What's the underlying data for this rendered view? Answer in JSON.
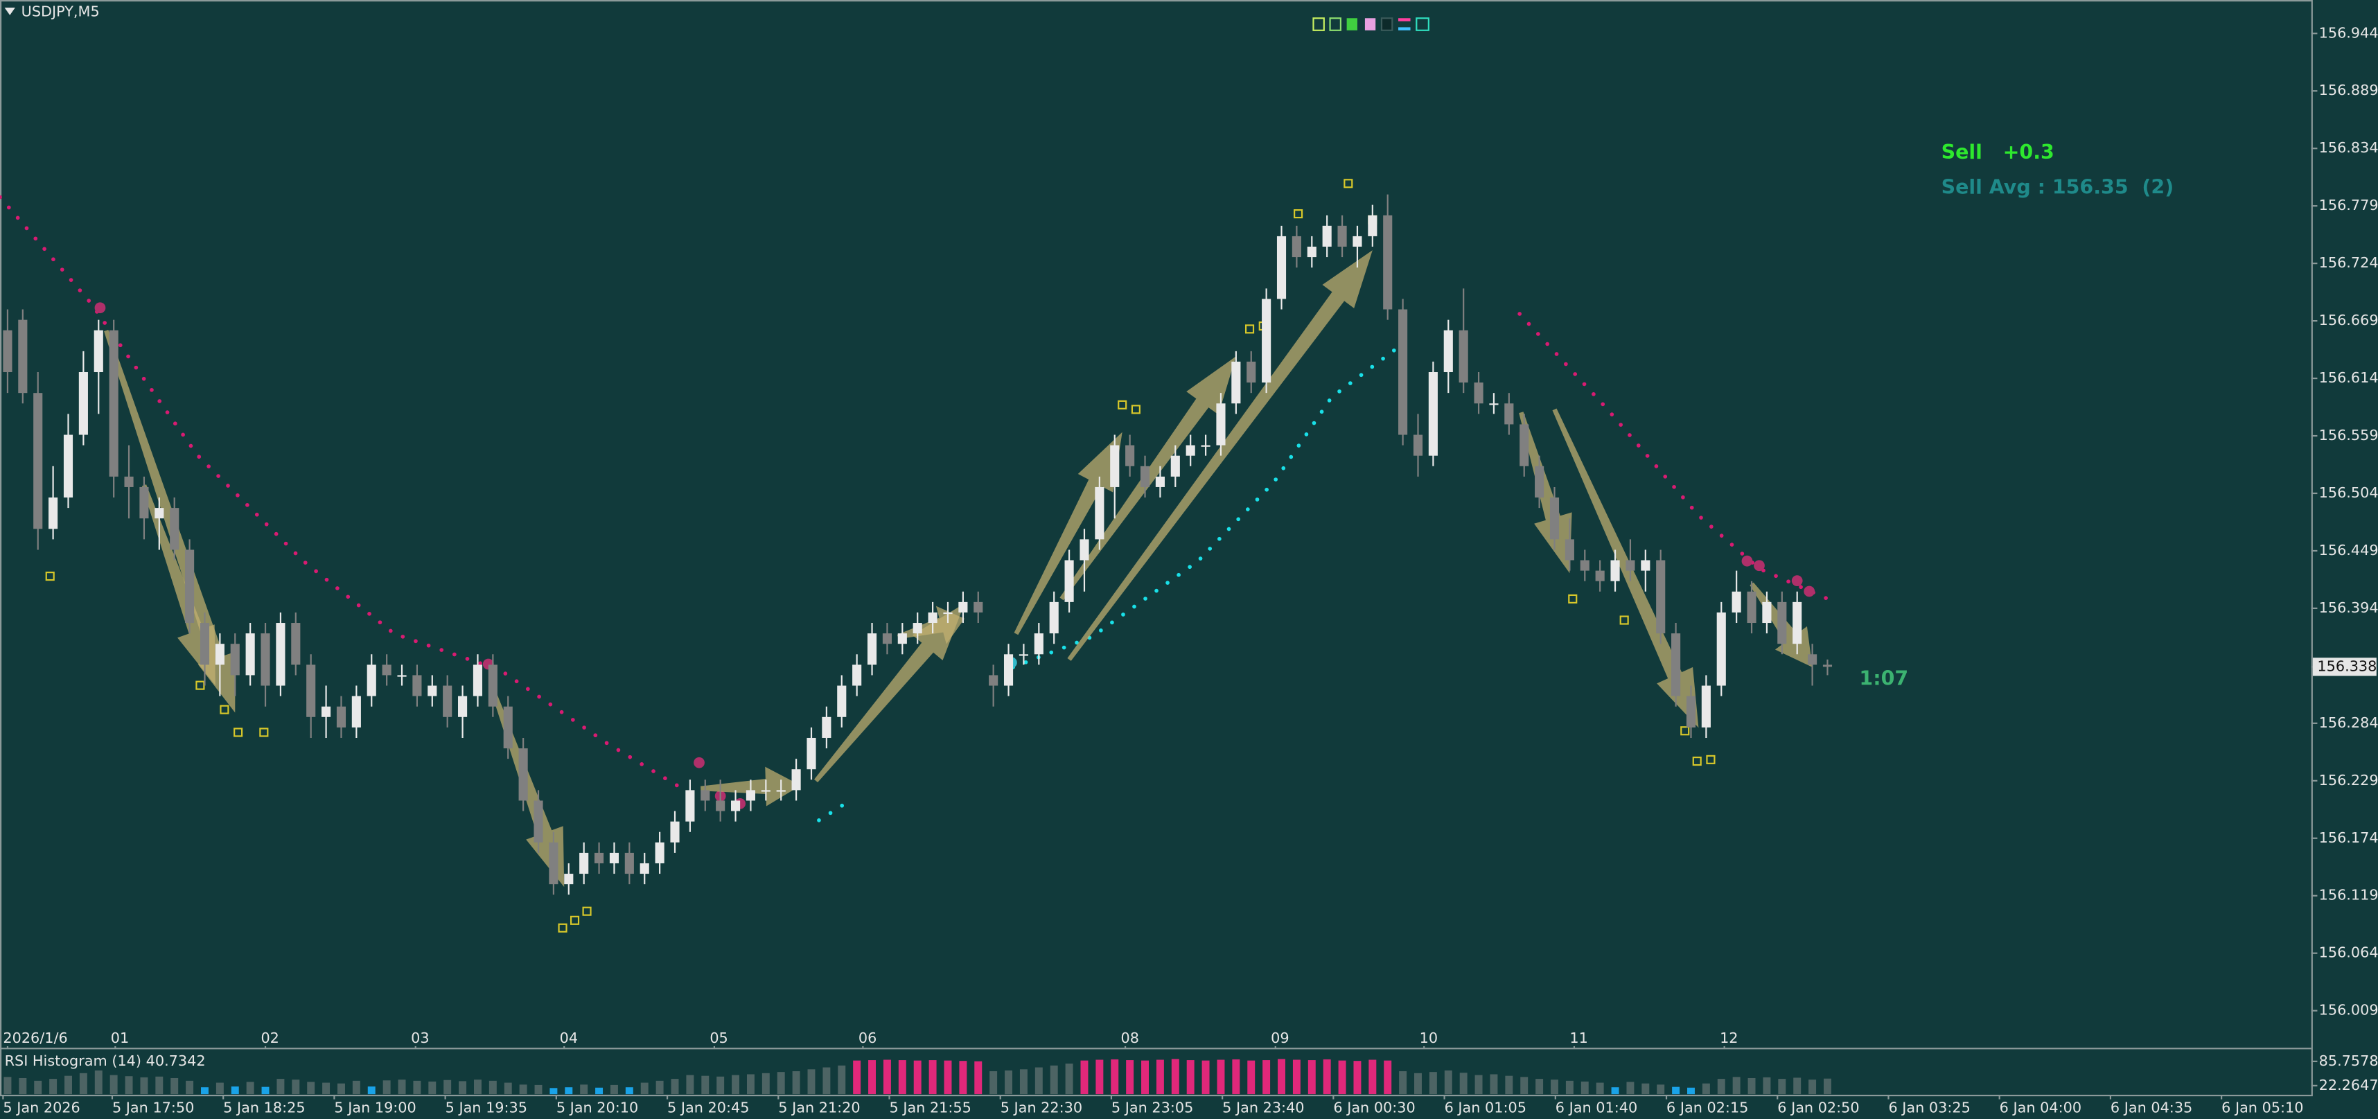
{
  "chart_data": {
    "type": "candlestick",
    "symbol": "USDJPY,M5",
    "trade_label": "Sell   +0.3",
    "avg_label": "Sell Avg : 156.35  (2)",
    "timer": "1:07",
    "ylim": [
      155.975,
      156.976
    ],
    "yticks": [
      156.944,
      156.889,
      156.834,
      156.779,
      156.724,
      156.669,
      156.614,
      156.559,
      156.504,
      156.449,
      156.394,
      156.284,
      156.229,
      156.174,
      156.119,
      156.064,
      156.009
    ],
    "hour_labels": [
      "2026/1/6",
      "01",
      "02",
      "03",
      "04",
      "05",
      "06",
      "08",
      "09",
      "10",
      "11",
      "12"
    ],
    "x_labels": [
      "5 Jan 2026",
      "5 Jan 17:50",
      "5 Jan 18:25",
      "5 Jan 19:00",
      "5 Jan 19:35",
      "5 Jan 20:10",
      "5 Jan 20:45",
      "5 Jan 21:20",
      "5 Jan 21:55",
      "5 Jan 22:30",
      "5 Jan 23:05",
      "5 Jan 23:40",
      "6 Jan 00:30",
      "6 Jan 01:05",
      "6 Jan 01:40",
      "6 Jan 02:15",
      "6 Jan 02:50",
      "6 Jan 03:25",
      "6 Jan 04:00",
      "6 Jan 04:35",
      "6 Jan 05:10"
    ],
    "up_color": "#e9e9e9",
    "down_color": "#808080",
    "open": [
      156.66,
      156.67,
      156.6,
      156.47,
      156.5,
      156.56,
      156.62,
      156.66,
      156.52,
      156.51,
      156.48,
      156.49,
      156.45,
      156.38,
      156.34,
      156.36,
      156.33,
      156.37,
      156.32,
      156.38,
      156.34,
      156.29,
      156.3,
      156.28,
      156.31,
      156.34,
      156.33,
      156.33,
      156.31,
      156.32,
      156.29,
      156.31,
      156.34,
      156.3,
      156.26,
      156.21,
      156.17,
      156.13,
      156.14,
      156.16,
      156.15,
      156.16,
      156.14,
      156.15,
      156.17,
      156.19,
      156.22,
      156.21,
      156.2,
      156.21,
      156.22,
      156.22,
      156.22,
      156.24,
      156.27,
      156.29,
      156.32,
      156.34,
      156.37,
      156.36,
      156.37,
      156.38,
      156.39,
      156.39,
      156.4,
      156.33,
      156.32,
      156.35,
      156.35,
      156.37,
      156.4,
      156.44,
      156.46,
      156.51,
      156.55,
      156.53,
      156.51,
      156.52,
      156.54,
      156.55,
      156.55,
      156.59,
      156.63,
      156.61,
      156.69,
      156.75,
      156.73,
      156.74,
      156.76,
      156.74,
      156.75,
      156.77,
      156.68,
      156.56,
      156.54,
      156.62,
      156.66,
      156.61,
      156.59,
      156.59,
      156.57,
      156.53,
      156.5,
      156.46,
      156.44,
      156.43,
      156.42,
      156.44,
      156.43,
      156.44,
      156.37,
      156.31,
      156.28,
      156.32,
      156.39,
      156.41,
      156.38,
      156.4,
      156.36,
      156.35,
      156.34
    ],
    "high": [
      156.68,
      156.68,
      156.62,
      156.53,
      156.58,
      156.64,
      156.67,
      156.67,
      156.55,
      156.52,
      156.5,
      156.5,
      156.46,
      156.39,
      156.37,
      156.37,
      156.38,
      156.38,
      156.39,
      156.39,
      156.35,
      156.32,
      156.31,
      156.32,
      156.35,
      156.35,
      156.34,
      156.34,
      156.33,
      156.33,
      156.32,
      156.35,
      156.35,
      156.31,
      156.27,
      156.22,
      156.18,
      156.15,
      156.17,
      156.17,
      156.17,
      156.17,
      156.16,
      156.18,
      156.2,
      156.23,
      156.23,
      156.23,
      156.22,
      156.23,
      156.23,
      156.23,
      156.25,
      156.28,
      156.3,
      156.33,
      156.35,
      156.38,
      156.38,
      156.38,
      156.39,
      156.4,
      156.4,
      156.41,
      156.41,
      156.34,
      156.36,
      156.36,
      156.38,
      156.41,
      156.45,
      156.47,
      156.52,
      156.56,
      156.56,
      156.54,
      156.53,
      156.55,
      156.56,
      156.56,
      156.6,
      156.64,
      156.64,
      156.7,
      156.76,
      156.76,
      156.75,
      156.77,
      156.77,
      156.76,
      156.78,
      156.79,
      156.69,
      156.58,
      156.63,
      156.67,
      156.7,
      156.62,
      156.6,
      156.6,
      156.58,
      156.54,
      156.51,
      156.48,
      156.45,
      156.44,
      156.45,
      156.46,
      156.45,
      156.45,
      156.38,
      156.32,
      156.33,
      156.4,
      156.43,
      156.42,
      156.41,
      156.41,
      156.41,
      156.36,
      156.345
    ],
    "low": [
      156.6,
      156.59,
      156.45,
      156.46,
      156.49,
      156.55,
      156.58,
      156.5,
      156.48,
      156.46,
      156.45,
      156.44,
      156.37,
      156.32,
      156.31,
      156.31,
      156.32,
      156.3,
      156.31,
      156.33,
      156.27,
      156.27,
      156.27,
      156.27,
      156.3,
      156.32,
      156.32,
      156.3,
      156.3,
      156.28,
      156.27,
      156.3,
      156.29,
      156.25,
      156.2,
      156.16,
      156.12,
      156.12,
      156.13,
      156.14,
      156.14,
      156.13,
      156.13,
      156.14,
      156.16,
      156.18,
      156.2,
      156.19,
      156.19,
      156.2,
      156.21,
      156.21,
      156.21,
      156.23,
      156.26,
      156.28,
      156.31,
      156.33,
      156.35,
      156.35,
      156.36,
      156.37,
      156.38,
      156.38,
      156.38,
      156.3,
      156.31,
      156.34,
      156.34,
      156.36,
      156.39,
      156.41,
      156.45,
      156.48,
      156.52,
      156.5,
      156.5,
      156.51,
      156.53,
      156.54,
      156.54,
      156.58,
      156.6,
      156.6,
      156.68,
      156.72,
      156.72,
      156.73,
      156.73,
      156.72,
      156.74,
      156.67,
      156.55,
      156.52,
      156.53,
      156.6,
      156.6,
      156.58,
      156.58,
      156.56,
      156.52,
      156.49,
      156.45,
      156.43,
      156.42,
      156.41,
      156.41,
      156.42,
      156.41,
      156.36,
      156.3,
      156.27,
      156.27,
      156.31,
      156.38,
      156.37,
      156.37,
      156.35,
      156.35,
      156.32,
      156.33
    ],
    "close": [
      156.62,
      156.6,
      156.47,
      156.5,
      156.56,
      156.62,
      156.66,
      156.52,
      156.51,
      156.48,
      156.49,
      156.45,
      156.38,
      156.34,
      156.36,
      156.33,
      156.37,
      156.32,
      156.38,
      156.34,
      156.29,
      156.3,
      156.28,
      156.31,
      156.34,
      156.33,
      156.33,
      156.31,
      156.32,
      156.29,
      156.31,
      156.34,
      156.3,
      156.26,
      156.21,
      156.17,
      156.13,
      156.14,
      156.16,
      156.15,
      156.16,
      156.14,
      156.15,
      156.17,
      156.19,
      156.22,
      156.21,
      156.2,
      156.21,
      156.22,
      156.22,
      156.22,
      156.24,
      156.27,
      156.29,
      156.32,
      156.34,
      156.37,
      156.36,
      156.37,
      156.38,
      156.39,
      156.39,
      156.4,
      156.39,
      156.32,
      156.35,
      156.35,
      156.37,
      156.4,
      156.44,
      156.46,
      156.51,
      156.55,
      156.53,
      156.51,
      156.52,
      156.54,
      156.55,
      156.55,
      156.59,
      156.63,
      156.61,
      156.69,
      156.75,
      156.73,
      156.74,
      156.76,
      156.74,
      156.75,
      156.77,
      156.68,
      156.56,
      156.54,
      156.62,
      156.66,
      156.61,
      156.59,
      156.59,
      156.57,
      156.53,
      156.5,
      156.46,
      156.44,
      156.43,
      156.42,
      156.44,
      156.43,
      156.44,
      156.37,
      156.31,
      156.28,
      156.32,
      156.39,
      156.41,
      156.38,
      156.4,
      156.36,
      156.4,
      156.34,
      156.338
    ],
    "rsi": {
      "label": "RSI Histogram (14) 40.7342",
      "ticks": [
        85.7578,
        22.2647
      ],
      "colors": {
        "high": "#e0287a",
        "low": "#1aa3e8",
        "mid": "#4d6464"
      },
      "values": [
        45,
        42,
        35,
        40,
        48,
        55,
        62,
        50,
        47,
        44,
        46,
        42,
        35,
        18,
        30,
        20,
        32,
        19,
        40,
        38,
        32,
        30,
        28,
        35,
        20,
        36,
        38,
        35,
        33,
        37,
        34,
        38,
        35,
        30,
        25,
        24,
        16,
        18,
        25,
        17,
        24,
        18,
        30,
        35,
        40,
        50,
        48,
        46,
        50,
        52,
        55,
        58,
        60,
        65,
        70,
        75,
        88,
        89,
        90,
        89,
        88,
        89,
        88,
        87,
        86,
        60,
        62,
        65,
        70,
        75,
        80,
        88,
        90,
        91,
        89,
        88,
        90,
        92,
        89,
        88,
        90,
        91,
        88,
        89,
        92,
        90,
        89,
        91,
        88,
        87,
        90,
        88,
        60,
        55,
        58,
        62,
        56,
        50,
        52,
        48,
        45,
        40,
        38,
        35,
        33,
        30,
        18,
        32,
        28,
        25,
        19,
        17,
        28,
        40,
        45,
        42,
        44,
        40,
        43,
        38,
        40.7342
      ]
    }
  }
}
